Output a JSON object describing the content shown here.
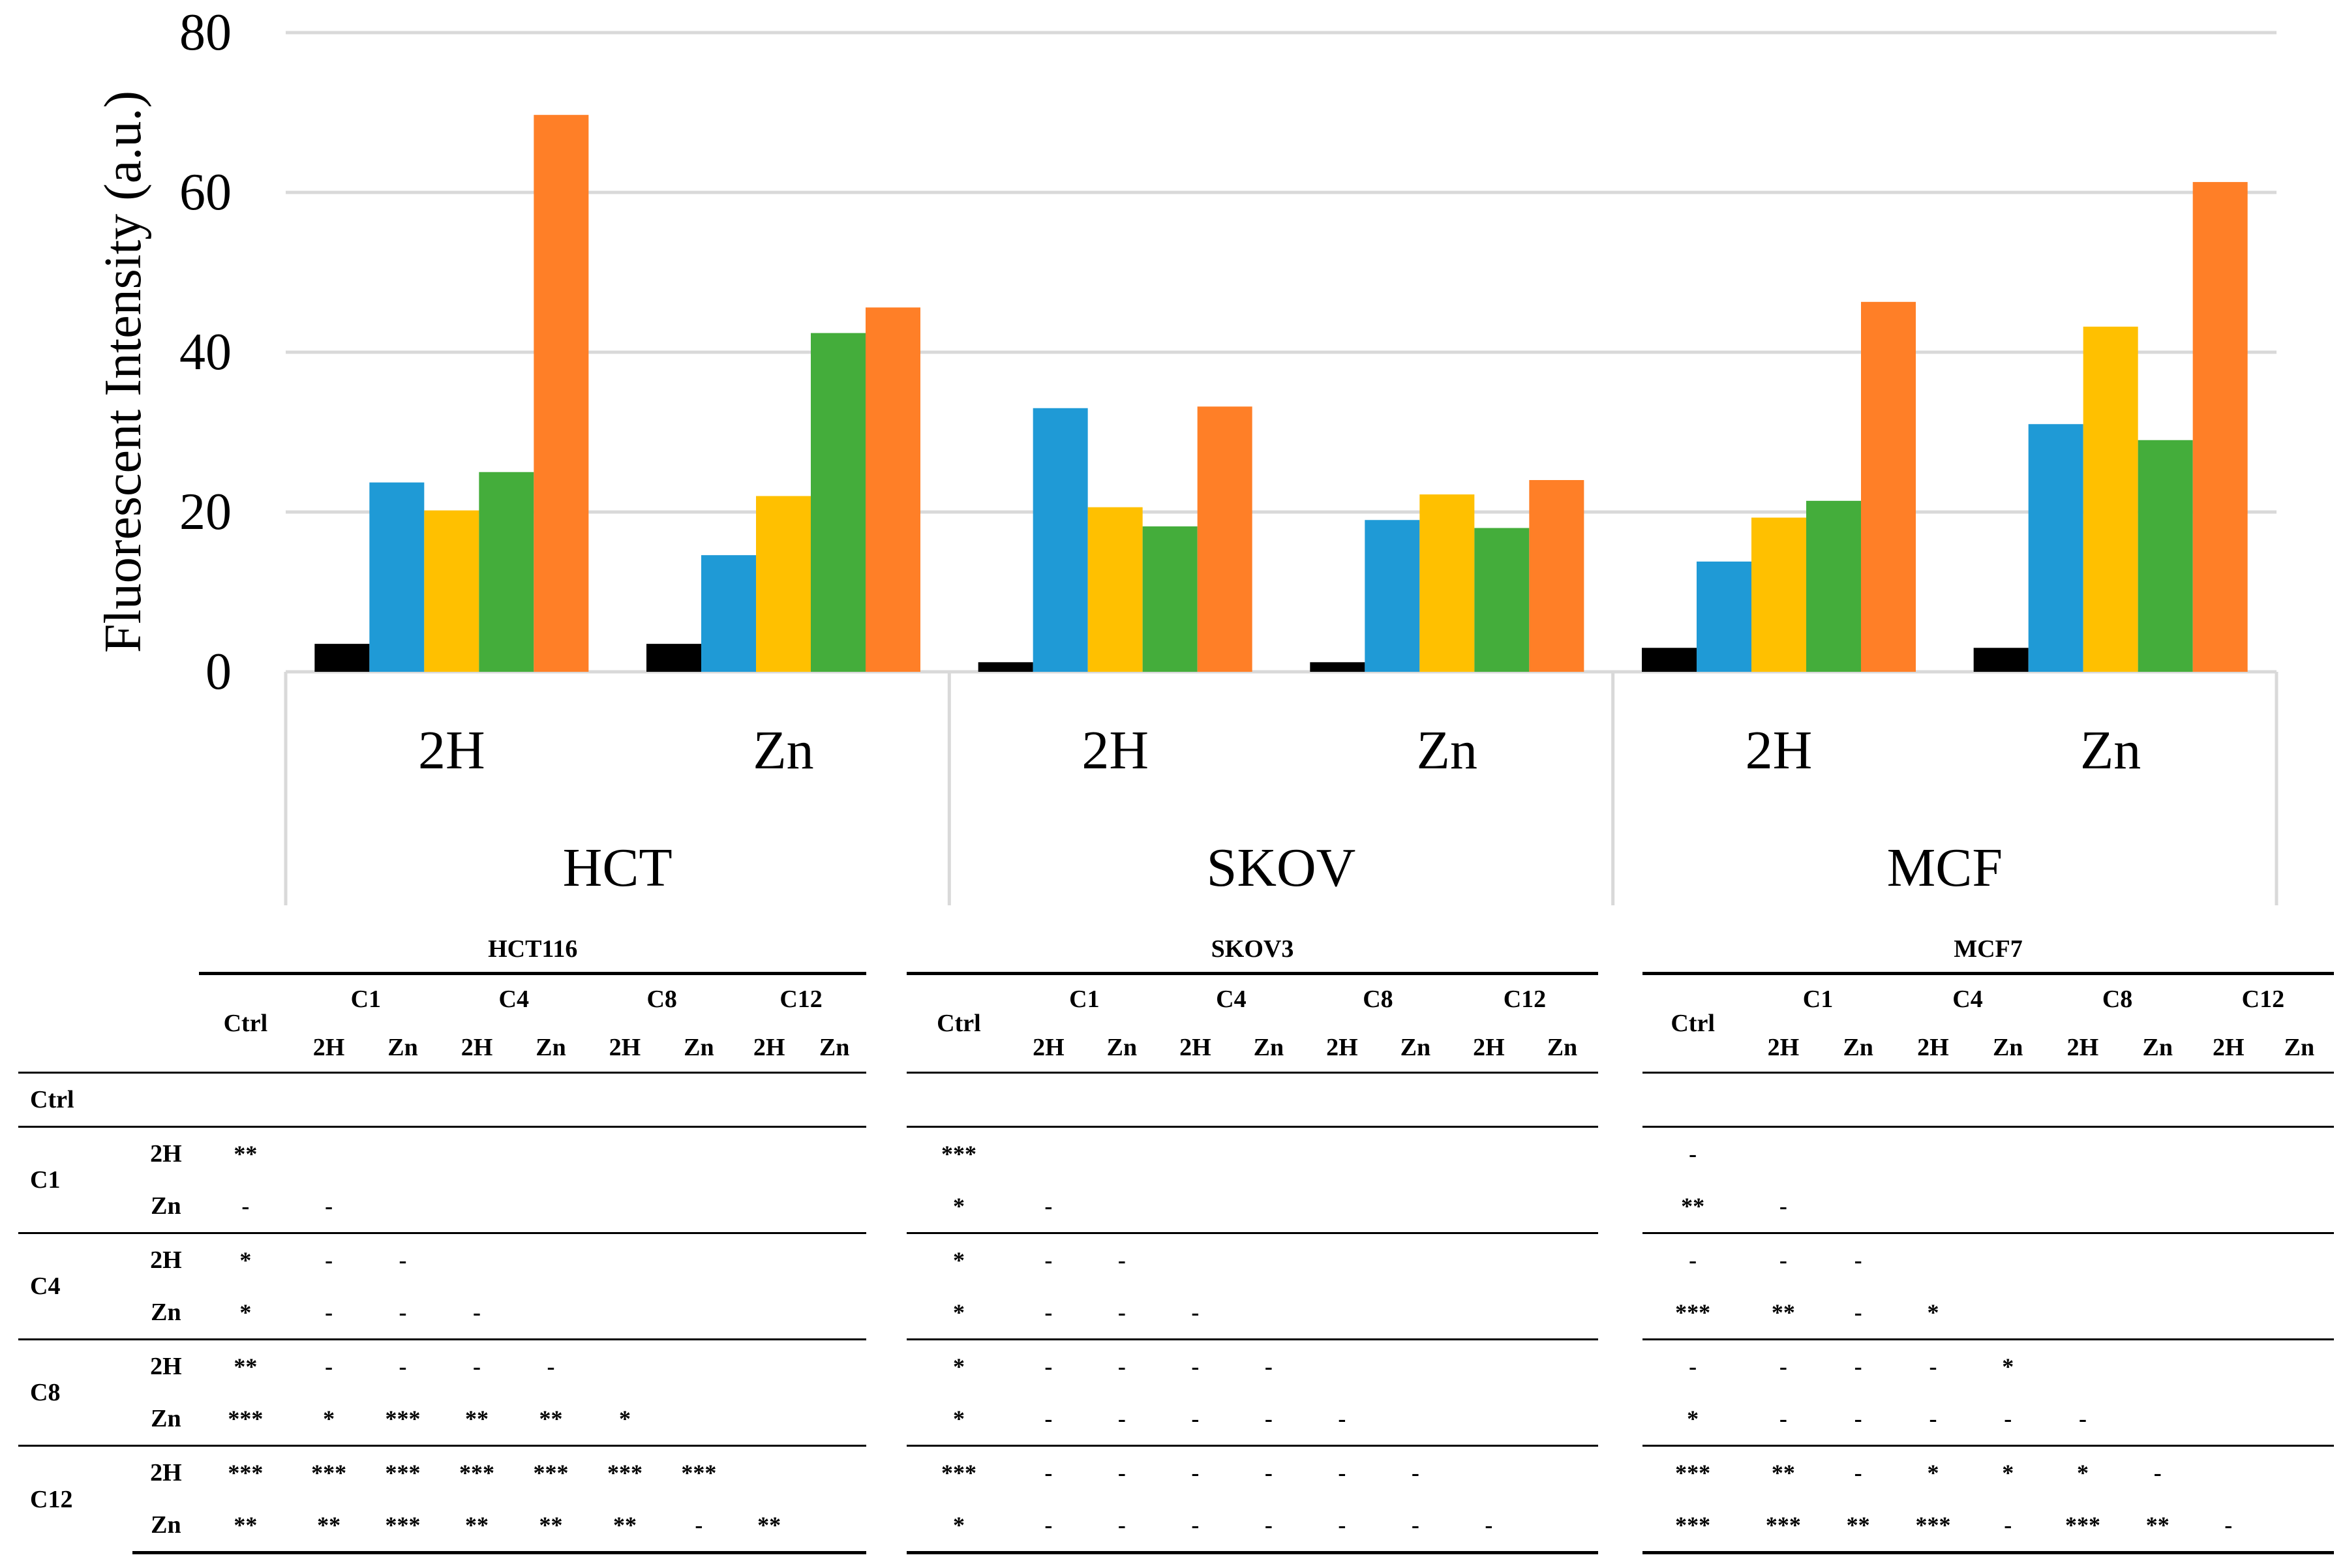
{
  "chart_data": {
    "type": "bar",
    "ylabel": "Fluorescent Intensity (a.u.)",
    "ylim": [
      0,
      80
    ],
    "yticks": [
      0,
      20,
      40,
      60,
      80
    ],
    "grid": true,
    "groups": [
      "HCT",
      "SKOV",
      "MCF"
    ],
    "conditions": [
      "2H",
      "Zn"
    ],
    "series_colors": [
      "#000000",
      "#1f9ad6",
      "#ffc000",
      "#44ad3b",
      "#ff7f27"
    ],
    "series": [
      {
        "name": "Ctrl",
        "values": [
          3.5,
          3.5,
          1.2,
          1.2,
          3.0,
          3.0
        ]
      },
      {
        "name": "C1",
        "values": [
          23.7,
          14.6,
          33.0,
          19.0,
          13.8,
          31.0
        ]
      },
      {
        "name": "C4",
        "values": [
          20.2,
          22.0,
          20.6,
          22.2,
          19.3,
          43.2
        ]
      },
      {
        "name": "C8",
        "values": [
          25.0,
          42.4,
          18.2,
          18.0,
          21.4,
          29.0
        ]
      },
      {
        "name": "C12",
        "values": [
          69.7,
          45.6,
          33.2,
          24.0,
          46.3,
          61.3
        ]
      }
    ]
  },
  "tables": [
    {
      "title": "HCT116",
      "ctrl_label": "Ctrl",
      "compounds": [
        "C1",
        "C4",
        "C8",
        "C12"
      ],
      "conds": [
        "2H",
        "Zn"
      ],
      "rows": [
        {
          "group": "Ctrl",
          "sub": "",
          "cells": []
        },
        {
          "group": "C1",
          "sub": "2H",
          "cells": [
            "**"
          ]
        },
        {
          "group": "",
          "sub": "Zn",
          "cells": [
            "-",
            "-"
          ]
        },
        {
          "group": "C4",
          "sub": "2H",
          "cells": [
            "*",
            "-",
            "-"
          ]
        },
        {
          "group": "",
          "sub": "Zn",
          "cells": [
            "*",
            "-",
            "-",
            "-"
          ]
        },
        {
          "group": "C8",
          "sub": "2H",
          "cells": [
            "**",
            "-",
            "-",
            "-",
            "-"
          ]
        },
        {
          "group": "",
          "sub": "Zn",
          "cells": [
            "***",
            "*",
            "***",
            "**",
            "**",
            "*"
          ]
        },
        {
          "group": "C12",
          "sub": "2H",
          "cells": [
            "***",
            "***",
            "***",
            "***",
            "***",
            "***",
            "***"
          ]
        },
        {
          "group": "",
          "sub": "Zn",
          "cells": [
            "**",
            "**",
            "***",
            "**",
            "**",
            "**",
            "-",
            "**"
          ]
        }
      ]
    },
    {
      "title": "SKOV3",
      "ctrl_label": "Ctrl",
      "compounds": [
        "C1",
        "C4",
        "C8",
        "C12"
      ],
      "conds": [
        "2H",
        "Zn"
      ],
      "rows": [
        {
          "group": "Ctrl",
          "sub": "",
          "cells": []
        },
        {
          "group": "C1",
          "sub": "2H",
          "cells": [
            "***"
          ]
        },
        {
          "group": "",
          "sub": "Zn",
          "cells": [
            "*",
            "-"
          ]
        },
        {
          "group": "C4",
          "sub": "2H",
          "cells": [
            "*",
            "-",
            "-"
          ]
        },
        {
          "group": "",
          "sub": "Zn",
          "cells": [
            "*",
            "-",
            "-",
            "-"
          ]
        },
        {
          "group": "C8",
          "sub": "2H",
          "cells": [
            "*",
            "-",
            "-",
            "-",
            "-"
          ]
        },
        {
          "group": "",
          "sub": "Zn",
          "cells": [
            "*",
            "-",
            "-",
            "-",
            "-",
            "-"
          ]
        },
        {
          "group": "C12",
          "sub": "2H",
          "cells": [
            "***",
            "-",
            "-",
            "-",
            "-",
            "-",
            "-"
          ]
        },
        {
          "group": "",
          "sub": "Zn",
          "cells": [
            "*",
            "-",
            "-",
            "-",
            "-",
            "-",
            "-",
            "-"
          ]
        }
      ]
    },
    {
      "title": "MCF7",
      "ctrl_label": "Ctrl",
      "compounds": [
        "C1",
        "C4",
        "C8",
        "C12"
      ],
      "conds": [
        "2H",
        "Zn"
      ],
      "rows": [
        {
          "group": "Ctrl",
          "sub": "",
          "cells": []
        },
        {
          "group": "C1",
          "sub": "2H",
          "cells": [
            "-"
          ]
        },
        {
          "group": "",
          "sub": "Zn",
          "cells": [
            "**",
            "-"
          ]
        },
        {
          "group": "C4",
          "sub": "2H",
          "cells": [
            "-",
            "-",
            "-"
          ]
        },
        {
          "group": "",
          "sub": "Zn",
          "cells": [
            "***",
            "**",
            "-",
            "*"
          ]
        },
        {
          "group": "C8",
          "sub": "2H",
          "cells": [
            "-",
            "-",
            "-",
            "-",
            "*"
          ]
        },
        {
          "group": "",
          "sub": "Zn",
          "cells": [
            "*",
            "-",
            "-",
            "-",
            "-",
            "-"
          ]
        },
        {
          "group": "C12",
          "sub": "2H",
          "cells": [
            "***",
            "**",
            "-",
            "*",
            "*",
            "*",
            "-"
          ]
        },
        {
          "group": "",
          "sub": "Zn",
          "cells": [
            "***",
            "***",
            "**",
            "***",
            "-",
            "***",
            "**",
            "-"
          ]
        }
      ]
    }
  ]
}
